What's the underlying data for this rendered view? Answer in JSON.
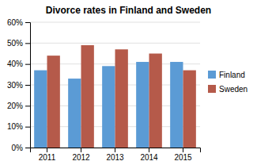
{
  "chart_data": {
    "type": "bar",
    "title": "Divorce rates in Finland and Sweden",
    "categories": [
      "2011",
      "2012",
      "2013",
      "2014",
      "2015"
    ],
    "series": [
      {
        "name": "Finland",
        "color": "#5b9bd5",
        "values": [
          37,
          33,
          39,
          41,
          41
        ]
      },
      {
        "name": "Sweden",
        "color": "#b55a4a",
        "values": [
          44,
          49,
          47,
          45,
          37
        ]
      }
    ],
    "ylim": [
      0,
      60
    ],
    "yticks": [
      {
        "value": 0,
        "label": "0%"
      },
      {
        "value": 10,
        "label": "10%"
      },
      {
        "value": 20,
        "label": "20%"
      },
      {
        "value": 30,
        "label": "30%"
      },
      {
        "value": 40,
        "label": "40%"
      },
      {
        "value": 50,
        "label": "50%"
      },
      {
        "value": 60,
        "label": "60%"
      }
    ],
    "grid": true,
    "legend": "right"
  }
}
